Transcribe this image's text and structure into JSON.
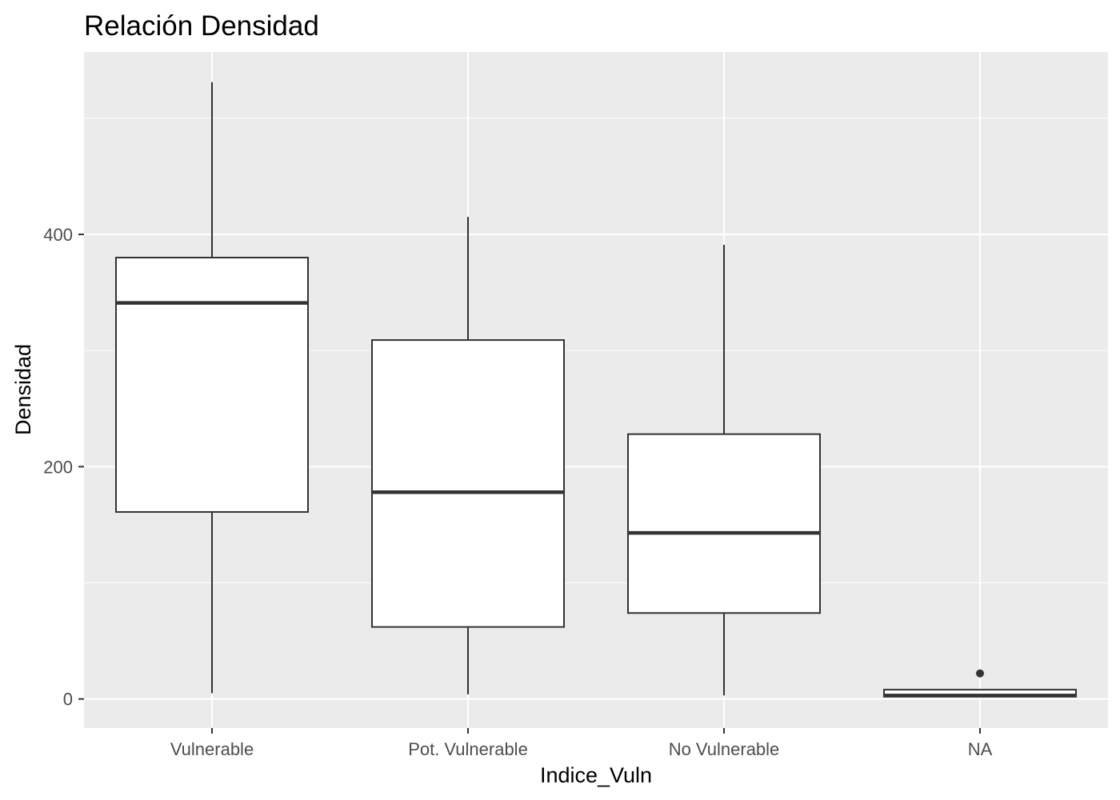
{
  "chart_data": {
    "type": "boxplot",
    "title": "Relación  Densidad",
    "xlabel": "Indice_Vuln",
    "ylabel": "Densidad",
    "categories": [
      "Vulnerable",
      "Pot. Vulnerable",
      "No Vulnerable",
      "NA"
    ],
    "boxes": [
      {
        "category": "Vulnerable",
        "min": 5,
        "q1": 161,
        "median": 341,
        "q3": 380,
        "max": 531,
        "outliers": []
      },
      {
        "category": "Pot. Vulnerable",
        "min": 4,
        "q1": 62,
        "median": 178,
        "q3": 309,
        "max": 415,
        "outliers": []
      },
      {
        "category": "No Vulnerable",
        "min": 3,
        "q1": 74,
        "median": 143,
        "q3": 228,
        "max": 391,
        "outliers": []
      },
      {
        "category": "NA",
        "min": 2,
        "q1": 2,
        "median": 3,
        "q3": 8,
        "max": 8,
        "outliers": [
          22
        ]
      }
    ],
    "yticks": [
      0,
      200,
      400
    ],
    "ylim": [
      -25,
      557
    ],
    "grid": true,
    "colors": {
      "panel_background": "#ebebeb",
      "grid_line": "#ffffff",
      "box_fill": "#ffffff",
      "box_line": "#333333",
      "tick_text": "#4d4d4d",
      "title_text": "#000000"
    }
  }
}
